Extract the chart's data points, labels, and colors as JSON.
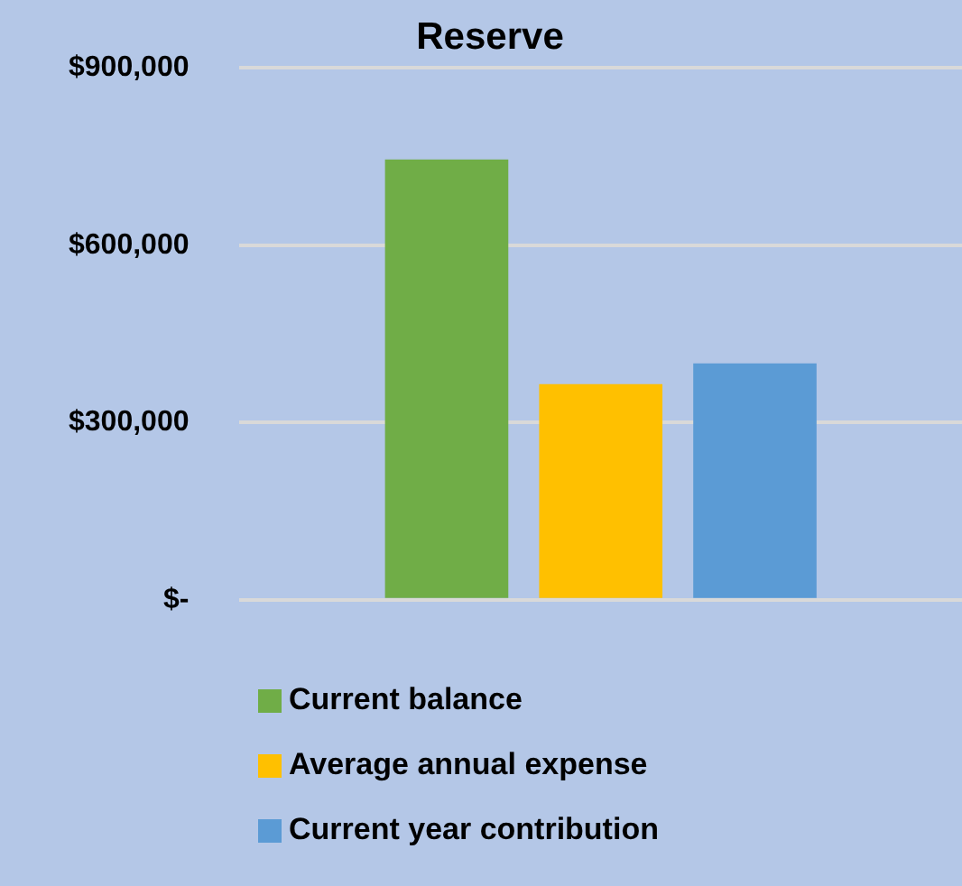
{
  "chart_data": {
    "type": "bar",
    "title": "Reserve",
    "categories": [
      null
    ],
    "series": [
      {
        "name": "Current balance",
        "color": "#70ad47",
        "values": [
          745000
        ]
      },
      {
        "name": "Average annual expense",
        "color": "#ffc000",
        "values": [
          365000
        ]
      },
      {
        "name": "Current year contribution",
        "color": "#5b9bd5",
        "values": [
          400000
        ]
      }
    ],
    "ylim": [
      0,
      900000
    ],
    "yticks": [
      {
        "value": 0,
        "label": "$-"
      },
      {
        "value": 300000,
        "label": "$300,000"
      },
      {
        "value": 600000,
        "label": "$600,000"
      },
      {
        "value": 900000,
        "label": "$900,000"
      }
    ],
    "grid": "y",
    "legend": "bottom"
  }
}
